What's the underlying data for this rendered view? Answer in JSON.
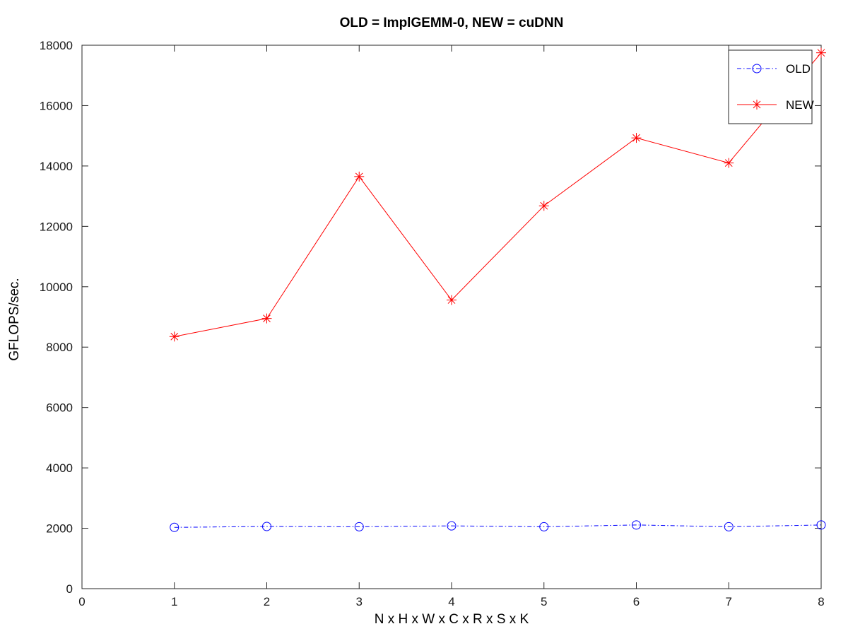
{
  "chart_data": {
    "type": "line",
    "title": "OLD = ImplGEMM-0, NEW = cuDNN",
    "xlabel": "N x H x W x C x R x S x K",
    "ylabel": "GFLOPS/sec.",
    "xlim": [
      0,
      8
    ],
    "ylim": [
      0,
      18000
    ],
    "xticks": [
      0,
      1,
      2,
      3,
      4,
      5,
      6,
      7,
      8
    ],
    "yticks": [
      0,
      2000,
      4000,
      6000,
      8000,
      10000,
      12000,
      14000,
      16000,
      18000
    ],
    "grid": false,
    "legend_position": "top-right",
    "x": [
      1,
      2,
      3,
      4,
      5,
      6,
      7,
      8
    ],
    "series": [
      {
        "name": "OLD",
        "color": "#0000ff",
        "line_style": "dash-dot",
        "marker": "circle",
        "values": [
          2030,
          2060,
          2050,
          2080,
          2050,
          2110,
          2050,
          2110
        ]
      },
      {
        "name": "NEW",
        "color": "#ff0000",
        "line_style": "solid",
        "marker": "asterisk",
        "values": [
          8350,
          8950,
          13650,
          9560,
          12680,
          14930,
          14100,
          17750
        ]
      }
    ]
  }
}
